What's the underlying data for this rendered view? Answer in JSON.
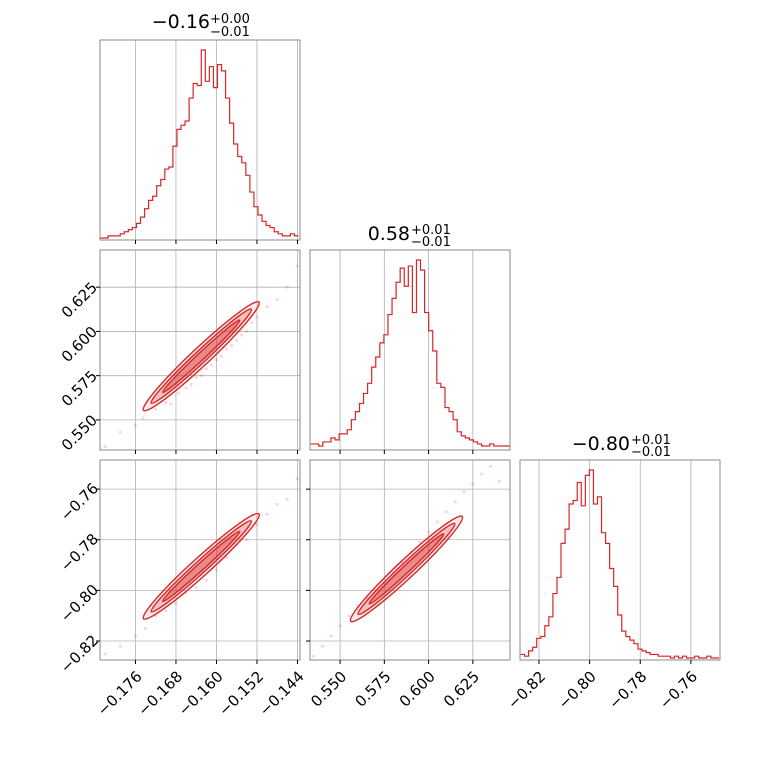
{
  "chart_data": {
    "type": "corner",
    "color": "#d62728",
    "panels": {
      "x": {
        "range": [
          -0.183,
          -0.1435
        ],
        "ticks": [
          -0.176,
          -0.168,
          -0.16,
          -0.152,
          -0.144
        ],
        "tick_labels": [
          "−0.176",
          "−0.168",
          "−0.160",
          "−0.152",
          "−0.144"
        ],
        "title": {
          "value": "−0.16",
          "plus": "+0.00",
          "minus": "−0.01"
        },
        "histogram": {
          "x": [
            -0.1826,
            -0.1818,
            -0.181,
            -0.1802,
            -0.1794,
            -0.1786,
            -0.1778,
            -0.177,
            -0.1762,
            -0.1754,
            -0.1746,
            -0.1738,
            -0.173,
            -0.1722,
            -0.1714,
            -0.1706,
            -0.1698,
            -0.169,
            -0.1682,
            -0.1674,
            -0.1666,
            -0.1658,
            -0.165,
            -0.1642,
            -0.1634,
            -0.1626,
            -0.1618,
            -0.161,
            -0.1602,
            -0.1594,
            -0.1586,
            -0.1578,
            -0.157,
            -0.1562,
            -0.1554,
            -0.1546,
            -0.1538,
            -0.153,
            -0.1522,
            -0.1514,
            -0.1506,
            -0.1498,
            -0.149,
            -0.1482,
            -0.1474,
            -0.1466,
            -0.1458,
            -0.145,
            -0.1442
          ],
          "counts": [
            0,
            0,
            1,
            1,
            1,
            2,
            3,
            4,
            5,
            7,
            10,
            14,
            18,
            20,
            25,
            28,
            33,
            34,
            44,
            52,
            54,
            56,
            67,
            74,
            73,
            90,
            75,
            82,
            72,
            83,
            80,
            67,
            55,
            45,
            39,
            36,
            30,
            22,
            15,
            11,
            8,
            6,
            5,
            3,
            2,
            1,
            1,
            2,
            1
          ]
        }
      },
      "y": {
        "range": [
          0.533,
          0.646
        ],
        "ticks": [
          0.55,
          0.575,
          0.6,
          0.625
        ],
        "tick_labels": [
          "0.550",
          "0.575",
          "0.600",
          "0.625"
        ],
        "title": {
          "value": "0.58",
          "plus": "+0.01",
          "minus": "−0.01"
        },
        "histogram": {
          "x": [
            0.5345,
            0.5368,
            0.5391,
            0.5414,
            0.5437,
            0.546,
            0.5483,
            0.5506,
            0.5529,
            0.5552,
            0.5575,
            0.5598,
            0.5621,
            0.5644,
            0.5667,
            0.569,
            0.5713,
            0.5736,
            0.5759,
            0.5782,
            0.5805,
            0.5828,
            0.5851,
            0.5874,
            0.5897,
            0.592,
            0.5943,
            0.5966,
            0.5989,
            0.6012,
            0.6035,
            0.6058,
            0.6081,
            0.6104,
            0.6127,
            0.615,
            0.6173,
            0.6196,
            0.6219,
            0.6242,
            0.6265,
            0.6288,
            0.6311,
            0.6334,
            0.6357,
            0.638,
            0.6403,
            0.6426,
            0.6449
          ],
          "counts": [
            2,
            2,
            1,
            3,
            3,
            5,
            4,
            7,
            7,
            9,
            14,
            18,
            22,
            27,
            32,
            40,
            45,
            52,
            56,
            66,
            74,
            82,
            89,
            80,
            90,
            67,
            93,
            88,
            67,
            58,
            48,
            32,
            30,
            20,
            18,
            14,
            8,
            6,
            5,
            4,
            3,
            2,
            1,
            1,
            2,
            1,
            1,
            1,
            1
          ]
        }
      },
      "z": {
        "range": [
          -0.8275,
          -0.7485
        ],
        "ticks": [
          -0.82,
          -0.8,
          -0.78,
          -0.76
        ],
        "tick_labels": [
          "−0.82",
          "−0.80",
          "−0.78",
          "−0.76"
        ],
        "title": {
          "value": "−0.80",
          "plus": "+0.01",
          "minus": "−0.01"
        },
        "histogram": {
          "x": [
            -0.8265,
            -0.8249,
            -0.8233,
            -0.8217,
            -0.8201,
            -0.8185,
            -0.8169,
            -0.8153,
            -0.8137,
            -0.8121,
            -0.8105,
            -0.8089,
            -0.8073,
            -0.8057,
            -0.8041,
            -0.8025,
            -0.8009,
            -0.7993,
            -0.7977,
            -0.7961,
            -0.7945,
            -0.7929,
            -0.7913,
            -0.7897,
            -0.7881,
            -0.7865,
            -0.7849,
            -0.7833,
            -0.7817,
            -0.7801,
            -0.7785,
            -0.7769,
            -0.7753,
            -0.7737,
            -0.7721,
            -0.7705,
            -0.7689,
            -0.7673,
            -0.7657,
            -0.7641,
            -0.7625,
            -0.7609,
            -0.7593,
            -0.7577,
            -0.7561,
            -0.7545,
            -0.7529,
            -0.7513,
            -0.7497
          ],
          "counts": [
            2,
            1,
            4,
            6,
            11,
            12,
            18,
            23,
            36,
            45,
            64,
            72,
            86,
            88,
            98,
            85,
            102,
            105,
            86,
            90,
            70,
            64,
            50,
            40,
            24,
            15,
            12,
            10,
            8,
            5,
            4,
            3,
            2,
            2,
            1,
            1,
            1,
            0,
            1,
            0,
            1,
            0,
            0,
            1,
            0,
            0,
            1,
            0,
            0
          ]
        }
      }
    },
    "scatter_xy": {
      "x": [
        -0.182,
        -0.179,
        -0.176,
        -0.1745,
        -0.172,
        -0.17,
        -0.169,
        -0.1675,
        -0.166,
        -0.165,
        -0.164,
        -0.163,
        -0.162,
        -0.161,
        -0.16,
        -0.159,
        -0.158,
        -0.157,
        -0.156,
        -0.155,
        -0.154,
        -0.153,
        -0.152,
        -0.15,
        -0.148,
        -0.146,
        -0.144
      ],
      "y": [
        0.535,
        0.543,
        0.547,
        0.551,
        0.556,
        0.56,
        0.559,
        0.565,
        0.568,
        0.57,
        0.574,
        0.575,
        0.579,
        0.581,
        0.584,
        0.586,
        0.59,
        0.592,
        0.595,
        0.598,
        0.6,
        0.605,
        0.608,
        0.614,
        0.618,
        0.625,
        0.637
      ]
    },
    "scatter_xz": {
      "x": [
        -0.182,
        -0.179,
        -0.176,
        -0.174,
        -0.172,
        -0.17,
        -0.168,
        -0.166,
        -0.164,
        -0.162,
        -0.16,
        -0.158,
        -0.156,
        -0.154,
        -0.152,
        -0.15,
        -0.148,
        -0.146,
        -0.144
      ],
      "y": [
        -0.825,
        -0.822,
        -0.818,
        -0.815,
        -0.81,
        -0.808,
        -0.805,
        -0.801,
        -0.799,
        -0.796,
        -0.792,
        -0.787,
        -0.782,
        -0.78,
        -0.774,
        -0.77,
        -0.766,
        -0.764,
        -0.756
      ]
    },
    "scatter_yz": {
      "x": [
        0.535,
        0.54,
        0.545,
        0.55,
        0.555,
        0.56,
        0.565,
        0.57,
        0.575,
        0.58,
        0.585,
        0.59,
        0.595,
        0.6,
        0.605,
        0.61,
        0.615,
        0.62,
        0.625,
        0.63,
        0.635,
        0.64
      ],
      "y": [
        -0.826,
        -0.822,
        -0.818,
        -0.814,
        -0.81,
        -0.806,
        -0.803,
        -0.8,
        -0.797,
        -0.793,
        -0.789,
        -0.785,
        -0.781,
        -0.777,
        -0.773,
        -0.769,
        -0.765,
        -0.761,
        -0.758,
        -0.754,
        -0.751,
        -0.757
      ]
    },
    "grid": true
  }
}
